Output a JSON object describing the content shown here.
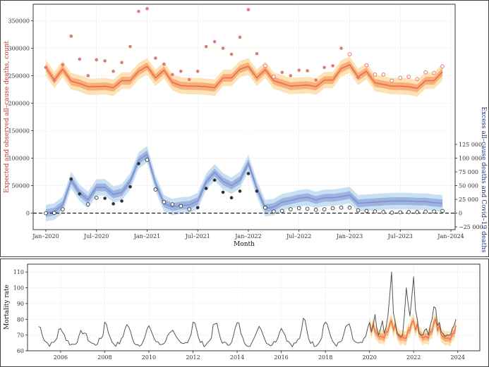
{
  "chart_data": [
    {
      "type": "line",
      "id": "top",
      "xlabel": "Month",
      "ylabel_left": "Expected and observed all–cause deaths, count",
      "ylabel_right": "Excess all–cause deaths and Covid–19 deaths",
      "x_tick_labels": [
        "Jan–2020",
        "Jul–2020",
        "Jan–2021",
        "Jul–2021",
        "Jan–2022",
        "Jul–2022",
        "Jan–2023",
        "Jul–2023",
        "Jan–2024"
      ],
      "x_tick_index": [
        0,
        6,
        12,
        18,
        24,
        30,
        36,
        42,
        48
      ],
      "x_range_index": [
        -1.5,
        48.5
      ],
      "ylim_left": [
        -30000,
        380000
      ],
      "y_ticks_left": [
        0,
        50000,
        100000,
        150000,
        200000,
        250000,
        300000,
        350000
      ],
      "y_ticks_right": [
        -25000,
        0,
        25000,
        50000,
        75000,
        100000,
        125000
      ],
      "y_tick_labels_right": [
        "−25 000",
        "0",
        "25 000",
        "50 000",
        "75 000",
        "100 000",
        "125 000"
      ],
      "zero_line": 0,
      "expected": [
        265000,
        242000,
        262000,
        240000,
        236000,
        230000,
        230000,
        231000,
        228000,
        241000,
        241000,
        258000,
        267000,
        246000,
        260000,
        238000,
        232000,
        231000,
        231000,
        230000,
        228000,
        246000,
        246000,
        262000,
        267000,
        246000,
        261000,
        241000,
        236000,
        231000,
        232000,
        233000,
        230000,
        242000,
        242000,
        263000,
        270000,
        248000,
        258000,
        237000,
        234000,
        231000,
        231000,
        230000,
        227000,
        241000,
        241000,
        257000
      ],
      "expected_band_inner": 7000,
      "expected_band_outer": 15000,
      "observed": [
        265000,
        242000,
        270000,
        322000,
        280000,
        250000,
        279000,
        277000,
        258000,
        274000,
        303000,
        367000,
        372000,
        282000,
        271000,
        252000,
        258000,
        243000,
        258000,
        303000,
        312000,
        300000,
        289000,
        320000,
        370000,
        290000,
        268000,
        248000,
        256000,
        250000,
        260000,
        259000,
        242000,
        265000,
        268000,
        300000,
        289000,
        247000,
        269000,
        252000,
        252000,
        241000,
        246000,
        248000,
        244000,
        256000,
        255000,
        267000
      ],
      "observed_hollow_index": [
        26,
        27,
        36,
        38,
        39,
        40,
        41,
        42,
        43,
        44,
        45,
        46,
        47
      ],
      "excess": [
        0,
        3000,
        15000,
        60000,
        37000,
        24000,
        47000,
        47000,
        34000,
        38000,
        58000,
        96000,
        107000,
        54000,
        18000,
        11000,
        14000,
        15000,
        22000,
        57000,
        74000,
        58000,
        50000,
        60000,
        91000,
        45000,
        9000,
        11000,
        20000,
        23000,
        27000,
        29000,
        24000,
        28000,
        28000,
        30000,
        33000,
        18000,
        19000,
        20000,
        21000,
        22000,
        22000,
        22000,
        21000,
        21000,
        19000,
        18000
      ],
      "excess_band_inner": 7000,
      "excess_band_outer": 15000,
      "covid_deaths": [
        0,
        500,
        7000,
        62000,
        35000,
        16000,
        28000,
        27000,
        17000,
        22000,
        48000,
        90000,
        97000,
        43000,
        20000,
        16000,
        13000,
        7000,
        10000,
        45000,
        60000,
        38000,
        28000,
        40000,
        72000,
        40000,
        10000,
        3000,
        4000,
        7000,
        9000,
        8000,
        6000,
        7000,
        9000,
        10000,
        10000,
        5000,
        4000,
        3000,
        2000,
        1000,
        1500,
        2000,
        2000,
        2500,
        3000,
        4000
      ],
      "covid_hollow_index": [
        0,
        1,
        2,
        5,
        6,
        12,
        13,
        14,
        15,
        16,
        17,
        26,
        27,
        28,
        29,
        30,
        31,
        32,
        33,
        34,
        35,
        36,
        37,
        38,
        39,
        40,
        41,
        42,
        43,
        44,
        45,
        46,
        47
      ],
      "colors": {
        "observed": "#e07b72",
        "expected_line": "#ef6a4c",
        "expected_inner": "#f6b07c",
        "expected_outer": "#fde2b6",
        "excess_line": "#7c93cf",
        "excess_inner": "#9fb3e0",
        "excess_outer": "#c8e0f1",
        "covid": "#333333",
        "red_axis": "#c0392b",
        "blue_axis": "#1f2f7a"
      }
    },
    {
      "type": "line",
      "id": "bottom",
      "ylabel": "Mortality rate",
      "x_tick_labels": [
        "2006",
        "2008",
        "2010",
        "2012",
        "2014",
        "2016",
        "2018",
        "2020",
        "2022",
        "2024"
      ],
      "x_ticks_year": [
        2006,
        2008,
        2010,
        2012,
        2014,
        2016,
        2018,
        2020,
        2022,
        2024
      ],
      "x_range_year": [
        2004.5,
        2025.0
      ],
      "ylim": [
        60,
        115
      ],
      "y_ticks": [
        60,
        70,
        80,
        90,
        100,
        110
      ],
      "start_year": 2005,
      "monthly_rate_seed": "seasonal",
      "covid_period_rates": [
        78,
        72,
        76,
        83,
        74,
        70,
        74,
        79,
        71,
        75,
        82,
        95,
        110,
        84,
        78,
        71,
        70,
        69,
        70,
        83,
        100,
        90,
        82,
        94,
        107,
        86,
        80,
        71,
        70,
        70,
        73,
        74,
        70,
        76,
        80,
        88,
        87,
        76,
        78,
        72,
        71,
        69,
        70,
        70,
        70,
        74,
        76,
        80
      ],
      "expected_period_rates": [
        78,
        72,
        77,
        72,
        71,
        69,
        69,
        69,
        68,
        72,
        72,
        77,
        79,
        73,
        77,
        71,
        69,
        68,
        69,
        68,
        68,
        73,
        73,
        78,
        79,
        73,
        77,
        71,
        70,
        68,
        69,
        69,
        68,
        72,
        72,
        78,
        80,
        73,
        76,
        70,
        69,
        68,
        68,
        68,
        67,
        71,
        71,
        76
      ],
      "colors": {
        "line": "#555555",
        "expected_line": "#ef6a4c",
        "expected_inner": "#f6b07c",
        "expected_outer": "#fde2b6"
      }
    }
  ]
}
